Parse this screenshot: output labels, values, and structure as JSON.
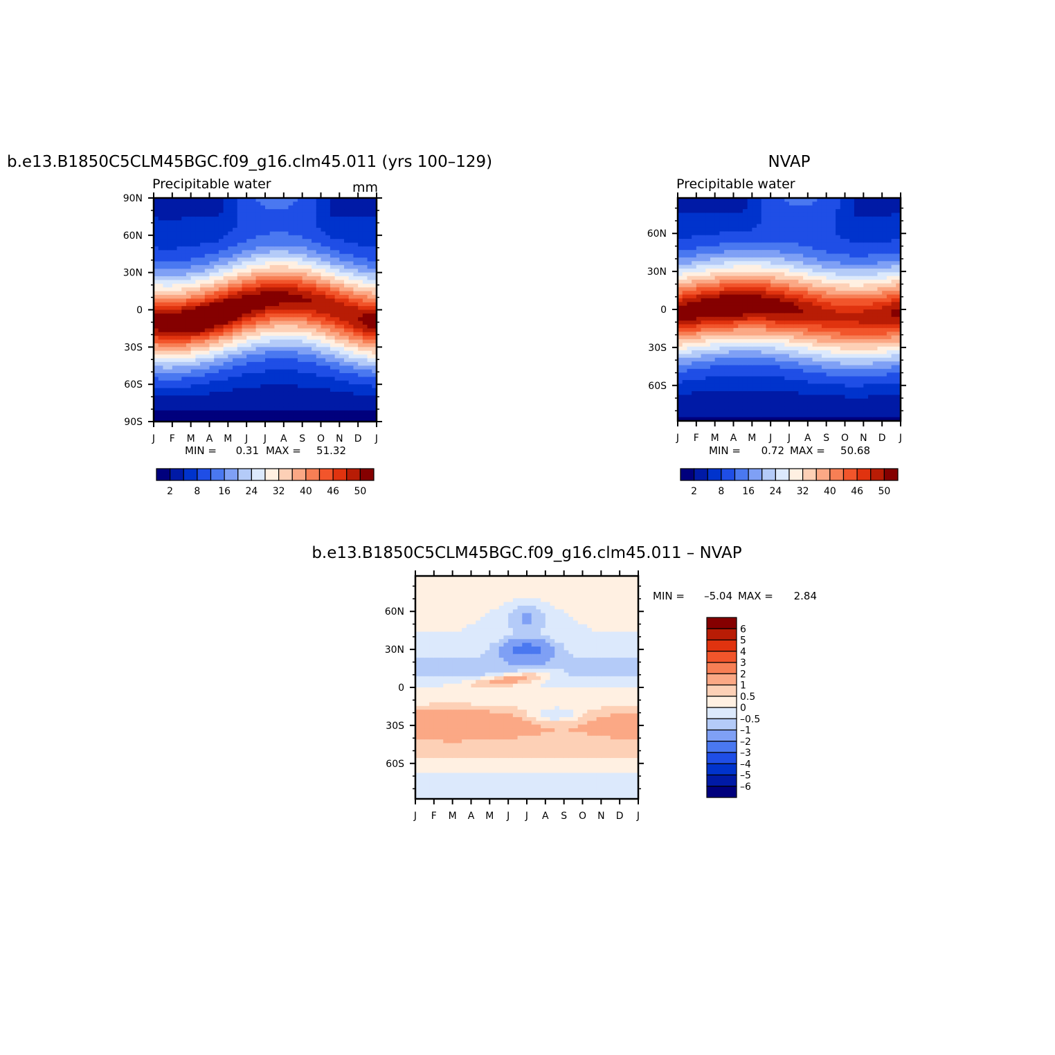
{
  "chart_data": [
    {
      "type": "heatmap",
      "title": "b.e13.B1850C5CLM45BGC.f09_g16.clm45.011 (yrs 100–129)",
      "subtitle": "Precipitable water",
      "units": "mm",
      "x_tick_labels": [
        "J",
        "F",
        "M",
        "A",
        "M",
        "J",
        "J",
        "A",
        "S",
        "O",
        "N",
        "D",
        "J"
      ],
      "y_tick_labels": [
        "90N",
        "60N",
        "30N",
        "0",
        "30S",
        "60S",
        "90S"
      ],
      "y_tick_values": [
        90,
        60,
        30,
        0,
        -30,
        -60,
        -90
      ],
      "ylim": [
        -90,
        90
      ],
      "stats": {
        "min_label": "MIN =",
        "min": "0.31",
        "max_label": "MAX =",
        "max": "51.32"
      },
      "field": {
        "eq_peak": 51.3,
        "peak_month": 6.8,
        "peak_lat": 10,
        "pole_n": 4,
        "pole_s": 0.5
      },
      "colorbar": {
        "orientation": "horizontal",
        "labels": [
          "2",
          "8",
          "16",
          "24",
          "32",
          "40",
          "46",
          "50"
        ],
        "colors": [
          "#00007d",
          "#001aa6",
          "#0033cc",
          "#1f4ee6",
          "#4a78f0",
          "#7fa0f5",
          "#b4cbf8",
          "#dce9fc",
          "#fff0e2",
          "#fdd0b6",
          "#fba885",
          "#f77f55",
          "#f2552b",
          "#e0330f",
          "#b81c05",
          "#850000"
        ]
      }
    },
    {
      "type": "heatmap",
      "title": "NVAP",
      "subtitle": "Precipitable water",
      "x_tick_labels": [
        "J",
        "F",
        "M",
        "A",
        "M",
        "J",
        "J",
        "A",
        "S",
        "O",
        "N",
        "D",
        "J"
      ],
      "y_tick_labels": [
        "60N",
        "30N",
        "0",
        "30S",
        "60S"
      ],
      "y_tick_values": [
        60,
        30,
        0,
        -30,
        -60
      ],
      "ylim": [
        -88,
        88
      ],
      "stats": {
        "min_label": "MIN =",
        "min": "0.72",
        "max_label": "MAX =",
        "max": "50.68"
      },
      "field": {
        "eq_peak": 50.7,
        "peak_month": 3.6,
        "peak_lat": 6,
        "pole_n": 4,
        "pole_s": 1
      },
      "colorbar": {
        "orientation": "horizontal",
        "labels": [
          "2",
          "8",
          "16",
          "24",
          "32",
          "40",
          "46",
          "50"
        ],
        "colors": [
          "#00007d",
          "#001aa6",
          "#0033cc",
          "#1f4ee6",
          "#4a78f0",
          "#7fa0f5",
          "#b4cbf8",
          "#dce9fc",
          "#fff0e2",
          "#fdd0b6",
          "#fba885",
          "#f77f55",
          "#f2552b",
          "#e0330f",
          "#b81c05",
          "#850000"
        ]
      }
    },
    {
      "type": "heatmap",
      "title": "b.e13.B1850C5CLM45BGC.f09_g16.clm45.011 – NVAP",
      "x_tick_labels": [
        "J",
        "F",
        "M",
        "A",
        "M",
        "J",
        "J",
        "A",
        "S",
        "O",
        "N",
        "D",
        "J"
      ],
      "y_tick_labels": [
        "60N",
        "30N",
        "0",
        "30S",
        "60S"
      ],
      "y_tick_values": [
        60,
        30,
        0,
        -30,
        -60
      ],
      "ylim": [
        -88,
        88
      ],
      "stats": {
        "min_label": "MIN =",
        "min": "–5.04",
        "max_label": "MAX =",
        "max": "2.84"
      },
      "colorbar": {
        "orientation": "vertical",
        "labels": [
          "6",
          "5",
          "4",
          "3",
          "2",
          "1",
          "0.5",
          "0",
          "–0.5",
          "–1",
          "–2",
          "–3",
          "–4",
          "–5",
          "–6"
        ],
        "colors": [
          "#850000",
          "#b81c05",
          "#e0330f",
          "#f2552b",
          "#f77f55",
          "#fba885",
          "#fdd0b6",
          "#fff0e2",
          "#dce9fc",
          "#b4cbf8",
          "#7fa0f5",
          "#4a78f0",
          "#1f4ee6",
          "#0033cc",
          "#001aa6",
          "#00007d"
        ]
      }
    }
  ]
}
